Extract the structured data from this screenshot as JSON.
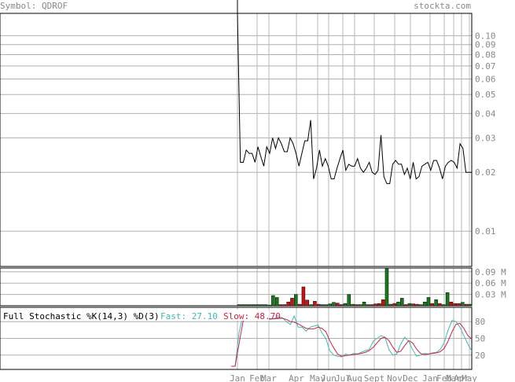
{
  "header": {
    "symbol_label": "Symbol: QDROF",
    "source": "stockta.com"
  },
  "chart_data": [
    {
      "type": "line",
      "panel": "price",
      "y_scale": "log",
      "ylim": [
        0.0066,
        0.13
      ],
      "y_ticks": [
        "0.10",
        "0.09",
        "0.08",
        "0.07",
        "0.06",
        "0.05",
        "0.04",
        "0.03",
        "0.02",
        "0.01"
      ],
      "x_ticks": [
        "Jan",
        "Feb",
        "Mar",
        "Apr",
        "May",
        "Jun",
        "Jul",
        "Aug",
        "Sept",
        "Nov",
        "Dec",
        "Jan",
        "Feb",
        "Mar",
        "Apr",
        "May"
      ],
      "values": [
        0.13,
        0.0225,
        0.0225,
        0.026,
        0.025,
        0.025,
        0.0225,
        0.027,
        0.024,
        0.0215,
        0.027,
        0.025,
        0.03,
        0.0265,
        0.03,
        0.028,
        0.0255,
        0.0255,
        0.03,
        0.028,
        0.025,
        0.0215,
        0.025,
        0.029,
        0.029,
        0.037,
        0.0185,
        0.021,
        0.026,
        0.0215,
        0.0235,
        0.0215,
        0.0185,
        0.0185,
        0.021,
        0.0235,
        0.026,
        0.0205,
        0.022,
        0.0215,
        0.0215,
        0.0235,
        0.021,
        0.02,
        0.021,
        0.0225,
        0.02,
        0.0195,
        0.0205,
        0.031,
        0.019,
        0.0175,
        0.0175,
        0.022,
        0.023,
        0.022,
        0.022,
        0.0195,
        0.021,
        0.0185,
        0.0225,
        0.0185,
        0.019,
        0.0215,
        0.022,
        0.0225,
        0.0205,
        0.023,
        0.023,
        0.021,
        0.0185,
        0.0215,
        0.0225,
        0.023,
        0.0225,
        0.021,
        0.028,
        0.0265,
        0.02,
        0.02,
        0.02
      ]
    },
    {
      "type": "bar",
      "panel": "volume",
      "y_ticks": [
        "0.09 M",
        "0.06 M",
        "0.03 M"
      ],
      "ylim": [
        0,
        0.1
      ],
      "colors": {
        "up": "#1a7a1a",
        "down": "#cc1111"
      },
      "values": [
        0.003,
        0.003,
        0.003,
        0.003,
        0.003,
        0.003,
        0.003,
        0.003,
        0.002,
        0.027,
        0.022,
        0.003,
        0.003,
        0.01,
        0.02,
        0.03,
        0.004,
        0.05,
        0.015,
        0.003,
        0.012,
        0.004,
        0.003,
        0.003,
        0.005,
        0.009,
        0.007,
        0.003,
        0.006,
        0.03,
        0.004,
        0.003,
        0.003,
        0.01,
        0.003,
        0.003,
        0.005,
        0.006,
        0.016,
        0.098,
        0.004,
        0.006,
        0.01,
        0.02,
        0.003,
        0.006,
        0.005,
        0.004,
        0.003,
        0.01,
        0.022,
        0.006,
        0.016,
        0.006,
        0.003,
        0.035,
        0.01,
        0.006,
        0.006,
        0.009,
        0.004,
        0.004
      ],
      "up": [
        true,
        true,
        true,
        true,
        true,
        true,
        true,
        true,
        true,
        true,
        true,
        false,
        false,
        false,
        false,
        true,
        false,
        false,
        false,
        true,
        false,
        false,
        true,
        true,
        true,
        true,
        false,
        false,
        true,
        true,
        true,
        false,
        true,
        true,
        true,
        false,
        false,
        false,
        false,
        true,
        true,
        false,
        true,
        true,
        false,
        true,
        false,
        false,
        true,
        true,
        true,
        false,
        true,
        false,
        true,
        true,
        false,
        false,
        false,
        true,
        false,
        true
      ]
    },
    {
      "type": "line",
      "panel": "stochastic",
      "label": "Full Stochastic %K(14,3) %D(3)",
      "fast_label": "Fast: 27.10",
      "slow_label": "Slow: 48.70",
      "ylim": [
        0,
        100
      ],
      "y_ticks": [
        "80",
        "50",
        "20"
      ],
      "colors": {
        "fast": "#3fb8b8",
        "slow": "#cc2244"
      },
      "series": [
        {
          "name": "Fast",
          "values": [
            0,
            0,
            60,
            92,
            90,
            90,
            90,
            85,
            88,
            85,
            84,
            86,
            88,
            87,
            80,
            75,
            90,
            70,
            70,
            63,
            70,
            72,
            74,
            60,
            50,
            28,
            20,
            18,
            17,
            22,
            20,
            23,
            22,
            25,
            28,
            30,
            45,
            50,
            55,
            52,
            30,
            20,
            22,
            40,
            52,
            45,
            30,
            18,
            20,
            23,
            22,
            24,
            25,
            30,
            42,
            65,
            82,
            80,
            70,
            55,
            40,
            27.1
          ]
        },
        {
          "name": "Slow",
          "values": [
            0,
            0,
            40,
            80,
            90,
            90,
            89,
            88,
            87,
            86,
            85,
            85,
            86,
            86,
            84,
            80,
            79,
            76,
            72,
            68,
            67,
            67,
            70,
            68,
            62,
            46,
            33,
            22,
            18,
            19,
            20,
            21,
            22,
            23,
            25,
            28,
            34,
            42,
            50,
            52,
            46,
            34,
            25,
            27,
            37,
            46,
            42,
            31,
            23,
            21,
            22,
            23,
            24,
            26,
            32,
            45,
            62,
            75,
            77,
            68,
            55,
            48.7
          ]
        }
      ]
    }
  ]
}
